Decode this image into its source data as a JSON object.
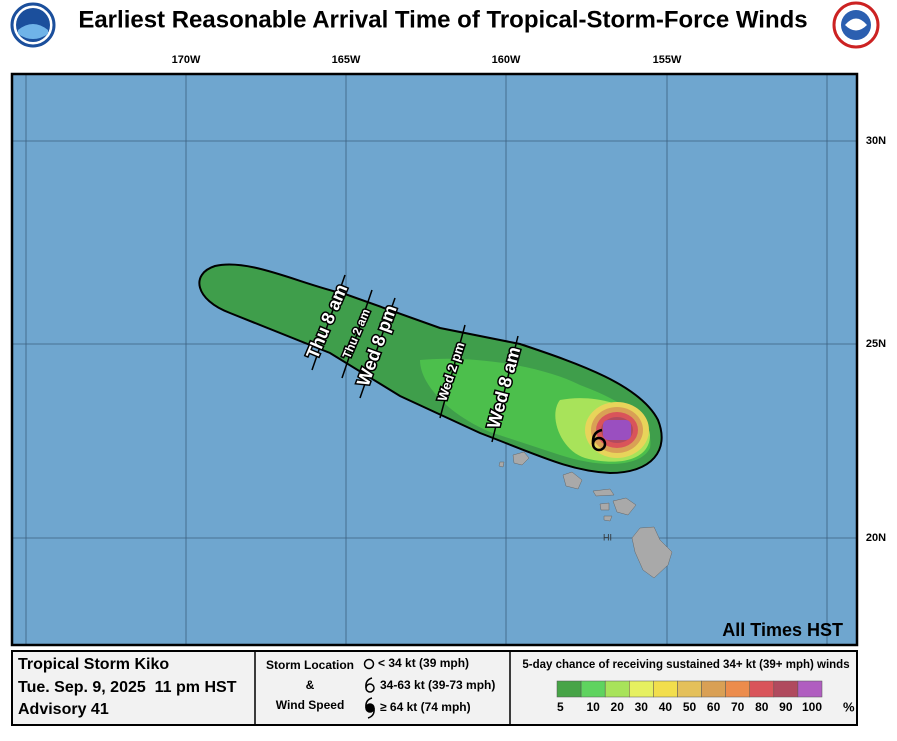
{
  "header": {
    "title": "Earliest Reasonable Arrival Time of Tropical-Storm-Force Winds"
  },
  "map": {
    "lon_labels": [
      "170W",
      "165W",
      "160W",
      "155W"
    ],
    "lat_labels": [
      "30N",
      "25N",
      "20N"
    ],
    "time_labels": [
      "Thu 8 am",
      "Thu 2 am",
      "Wed 8 pm",
      "Wed 2 pm",
      "Wed 8 am"
    ],
    "region_label": "HI",
    "note": "All Times HST"
  },
  "footer": {
    "storm_name": "Tropical Storm Kiko",
    "issued": "Tue. Sep. 9, 2025  11 pm HST",
    "advisory": "Advisory 41",
    "legend_title": [
      "Storm Location",
      "&",
      "Wind Speed"
    ],
    "symbols": [
      "< 34 kt (39 mph)",
      "34-63 kt (39-73 mph)",
      "≥ 64 kt (74 mph)"
    ],
    "scale_title": "5-day chance of receiving sustained 34+ kt (39+ mph) winds",
    "scale": [
      {
        "label": "5",
        "color": "#47a447"
      },
      {
        "label": "10",
        "color": "#5fd35f"
      },
      {
        "label": "20",
        "color": "#a8e35a"
      },
      {
        "label": "30",
        "color": "#e6f060"
      },
      {
        "label": "40",
        "color": "#f2de4c"
      },
      {
        "label": "50",
        "color": "#e4c05a"
      },
      {
        "label": "60",
        "color": "#d9a055"
      },
      {
        "label": "70",
        "color": "#ec8c4c"
      },
      {
        "label": "80",
        "color": "#d9545a"
      },
      {
        "label": "90",
        "color": "#b04a5e"
      },
      {
        "label": "100",
        "color": "#b05ec0"
      }
    ],
    "scale_unit": "%"
  }
}
